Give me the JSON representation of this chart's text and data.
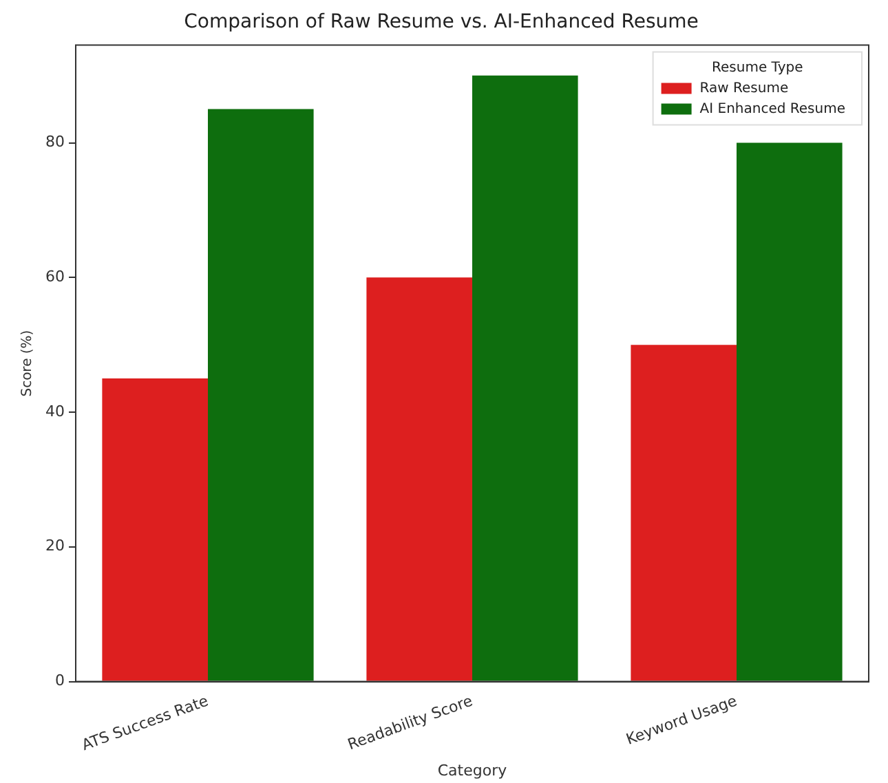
{
  "chart_data": {
    "type": "bar",
    "title": "Comparison of Raw Resume vs. AI-Enhanced Resume",
    "xlabel": "Category",
    "ylabel": "Score (%)",
    "legend_title": "Resume Type",
    "categories": [
      "ATS Success Rate",
      "Readability Score",
      "Keyword Usage"
    ],
    "series": [
      {
        "name": "Raw Resume",
        "color": "#dd1f1f",
        "values": [
          45,
          60,
          50
        ]
      },
      {
        "name": "AI Enhanced Resume",
        "color": "#0e6e0e",
        "values": [
          85,
          90,
          80
        ]
      }
    ],
    "ylim": [
      0,
      94.5
    ],
    "yticks": [
      0,
      20,
      40,
      60,
      80
    ],
    "grid": false,
    "legend": "top right"
  }
}
